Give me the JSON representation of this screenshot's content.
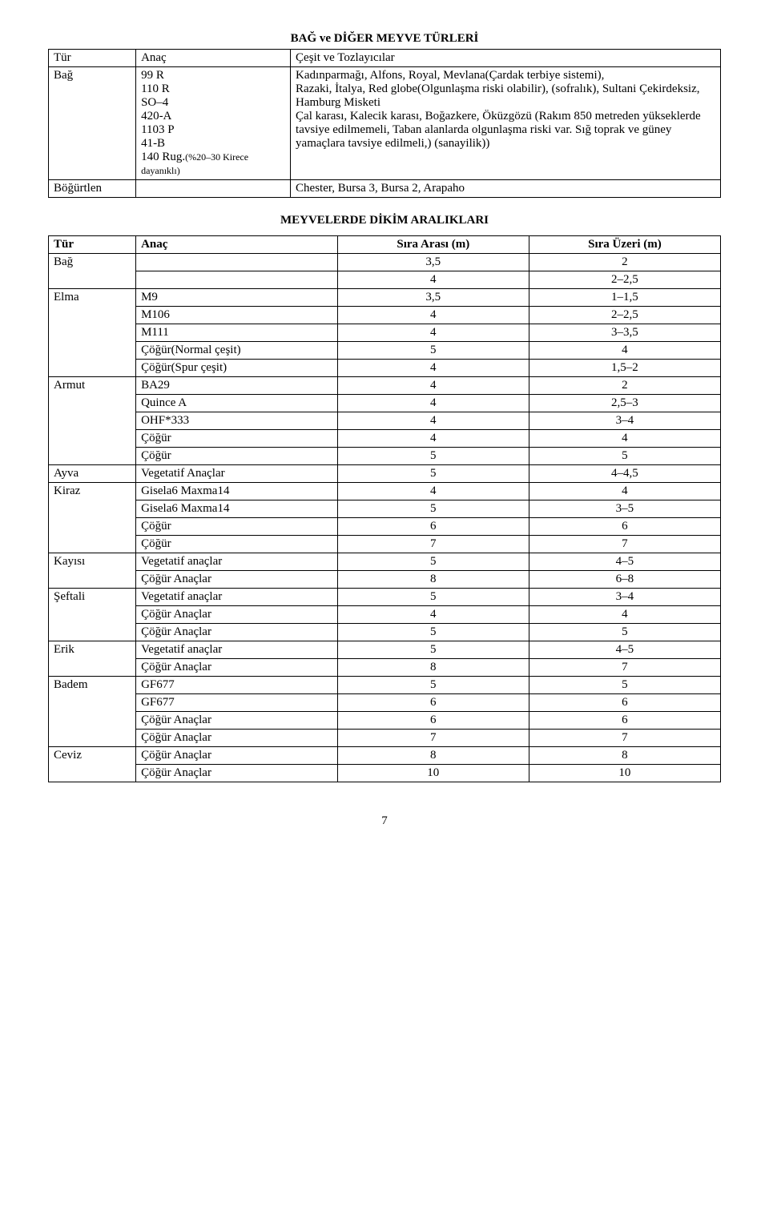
{
  "title1": "BAĞ ve DİĞER MEYVE TÜRLERİ",
  "table1": {
    "headers": {
      "tur": "Tür",
      "anac": "Anaç",
      "cesit": "Çeşit ve Tozlayıcılar"
    },
    "rows": [
      {
        "tur": "Bağ",
        "anac_lines": [
          "99 R",
          "110 R",
          "SO–4",
          "420-A",
          "1103 P",
          "41-B",
          "140 Rug."
        ],
        "anac_note": "(%20–30 Kirece dayanıklı)",
        "cesit": "Kadınparmağı, Alfons, Royal, Mevlana(Çardak terbiye sistemi),\nRazaki, İtalya, Red globe(Olgunlaşma riski olabilir), (sofralık), Sultani Çekirdeksiz, Hamburg Misketi\nÇal karası, Kalecik karası, Boğazkere, Öküzgözü (Rakım 850 metreden yükseklerde tavsiye edilmemeli, Taban alanlarda olgunlaşma riski var. Sığ toprak ve güney yamaçlara tavsiye edilmeli,) (sanayilik))"
      },
      {
        "tur": "Böğürtlen",
        "anac_lines": [],
        "anac_note": "",
        "cesit": "Chester, Bursa 3, Bursa 2, Arapaho"
      }
    ]
  },
  "subtitle": "MEYVELERDE DİKİM ARALIKLARI",
  "table2": {
    "headers": {
      "tur": "Tür",
      "anac": "Anaç",
      "sira_arasi": "Sıra Arası (m)",
      "sira_uzeri": "Sıra Üzeri (m)"
    },
    "groups": [
      {
        "tur": "Bağ",
        "rows": [
          {
            "anac": "",
            "a": "3,5",
            "b": "2"
          },
          {
            "anac": "",
            "a": "4",
            "b": "2–2,5"
          }
        ]
      },
      {
        "tur": "Elma",
        "rows": [
          {
            "anac": "M9",
            "a": "3,5",
            "b": "1–1,5"
          },
          {
            "anac": "M106",
            "a": "4",
            "b": "2–2,5"
          },
          {
            "anac": "M111",
            "a": "4",
            "b": "3–3,5"
          },
          {
            "anac": "Çöğür(Normal çeşit)",
            "a": "5",
            "b": "4"
          },
          {
            "anac": "Çöğür(Spur çeşit)",
            "a": "4",
            "b": "1,5–2"
          }
        ]
      },
      {
        "tur": "Armut",
        "rows": [
          {
            "anac": "BA29",
            "a": "4",
            "b": "2"
          },
          {
            "anac": "Quince A",
            "a": "4",
            "b": "2,5–3"
          },
          {
            "anac": "OHF*333",
            "a": "4",
            "b": "3–4"
          },
          {
            "anac": "Çöğür",
            "a": "4",
            "b": "4"
          },
          {
            "anac": "Çöğür",
            "a": "5",
            "b": "5"
          }
        ]
      },
      {
        "tur": "Ayva",
        "rows": [
          {
            "anac": "Vegetatif Anaçlar",
            "a": "5",
            "b": "4–4,5"
          }
        ]
      },
      {
        "tur": "Kiraz",
        "rows": [
          {
            "anac": "Gisela6 Maxma14",
            "a": "4",
            "b": "4"
          },
          {
            "anac": "Gisela6 Maxma14",
            "a": "5",
            "b": "3–5"
          },
          {
            "anac": "Çöğür",
            "a": "6",
            "b": "6"
          },
          {
            "anac": "Çöğür",
            "a": "7",
            "b": "7"
          }
        ]
      },
      {
        "tur": "Kayısı",
        "rows": [
          {
            "anac": "Vegetatif anaçlar",
            "a": "5",
            "b": "4–5"
          },
          {
            "anac": "Çöğür Anaçlar",
            "a": "8",
            "b": "6–8"
          }
        ]
      },
      {
        "tur": "Şeftali",
        "rows": [
          {
            "anac": "Vegetatif anaçlar",
            "a": "5",
            "b": "3–4"
          },
          {
            "anac": "Çöğür Anaçlar",
            "a": "4",
            "b": "4"
          },
          {
            "anac": "Çöğür Anaçlar",
            "a": "5",
            "b": "5"
          }
        ]
      },
      {
        "tur": "Erik",
        "rows": [
          {
            "anac": "Vegetatif anaçlar",
            "a": "5",
            "b": "4–5"
          },
          {
            "anac": "Çöğür Anaçlar",
            "a": "8",
            "b": "7"
          }
        ]
      },
      {
        "tur": "Badem",
        "rows": [
          {
            "anac": "GF677",
            "a": "5",
            "b": "5"
          },
          {
            "anac": "GF677",
            "a": "6",
            "b": "6"
          },
          {
            "anac": "Çöğür Anaçlar",
            "a": "6",
            "b": "6"
          },
          {
            "anac": "Çöğür Anaçlar",
            "a": "7",
            "b": "7"
          }
        ]
      },
      {
        "tur": "Ceviz",
        "rows": [
          {
            "anac": "Çöğür Anaçlar",
            "a": "8",
            "b": "8"
          },
          {
            "anac": "Çöğür Anaçlar",
            "a": "10",
            "b": "10"
          }
        ]
      }
    ]
  },
  "page_number": "7"
}
